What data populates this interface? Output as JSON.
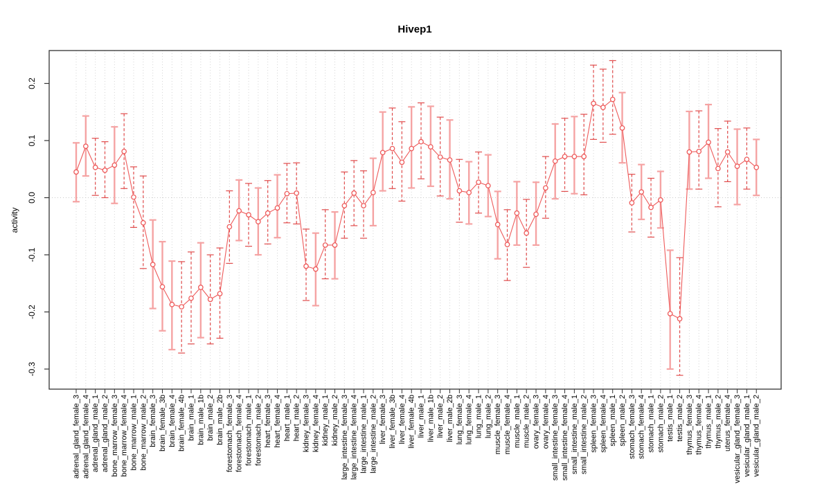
{
  "figure": {
    "background": "#ffffff"
  },
  "chart_data": {
    "type": "line",
    "subtype": "points-with-error-bars",
    "title": "Hivep1",
    "xlabel": "",
    "ylabel": "activity",
    "legend": "none",
    "grid": {
      "vertical": "dotted line at every category",
      "horizontal": "dotted line at y=0 only"
    },
    "ylim": [
      -0.335,
      0.258
    ],
    "y_tick_labels": [
      "0.2",
      "0.1",
      "0.0",
      "-0.1",
      "-0.2",
      "-0.3"
    ],
    "y_tick_values": [
      0.2,
      0.1,
      0.0,
      -0.1,
      -0.2,
      -0.3
    ],
    "colors": {
      "marker_line": "#ee5a5a",
      "error_bar_solid": "#f5a3a3",
      "error_bar_dashed": "#e04b4b",
      "frame": "#333333",
      "grid": "#d4d4d4",
      "zero_line": "#c9c9c9",
      "text": "#000000"
    },
    "categories": [
      "adrenal_gland_female_3",
      "adrenal_gland_female_4",
      "adrenal_gland_male_1",
      "adrenal_gland_male_2",
      "bone_marrow_female_3",
      "bone_marrow_female_4",
      "bone_marrow_male_1",
      "bone_marrow_male_2",
      "brain_female_3",
      "brain_female_3b",
      "brain_female_4",
      "brain_female_4b",
      "brain_male_1",
      "brain_male_1b",
      "brain_male_2",
      "brain_male_2b",
      "forestomach_female_3",
      "forestomach_female_4",
      "forestomach_male_1",
      "forestomach_male_2",
      "heart_female_3",
      "heart_female_4",
      "heart_male_1",
      "heart_male_2",
      "kidney_female_3",
      "kidney_female_4",
      "kidney_male_1",
      "kidney_male_2",
      "large_intestine_female_3",
      "large_intestine_female_4",
      "large_intestine_male_1",
      "large_intestine_male_2",
      "liver_female_3",
      "liver_female_3b",
      "liver_female_4",
      "liver_female_4b",
      "liver_male_1",
      "liver_male_1b",
      "liver_male_2",
      "liver_male_2b",
      "lung_female_3",
      "lung_female_4",
      "lung_male_1",
      "lung_male_2",
      "muscle_female_3",
      "muscle_female_4",
      "muscle_male_1",
      "muscle_male_2",
      "ovary_female_3",
      "ovary_female_4",
      "small_intestine_female_3",
      "small_intestine_female_4",
      "small_intestine_male_1",
      "small_intestine_male_2",
      "spleen_female_3",
      "spleen_female_4",
      "spleen_male_1",
      "spleen_male_2",
      "stomach_female_3",
      "stomach_female_4",
      "stomach_male_1",
      "stomach_male_2",
      "testis_male_1",
      "testis_male_2",
      "thymus_female_3",
      "thymus_female_4",
      "thymus_male_1",
      "thymus_male_2",
      "uterus_female_4",
      "vesicular_gland_female_3",
      "vesicular_gland_male_1",
      "vesicular_gland_male_2"
    ],
    "values": [
      0.045,
      0.09,
      0.053,
      0.048,
      0.057,
      0.081,
      0.001,
      -0.044,
      -0.117,
      -0.156,
      -0.187,
      -0.191,
      -0.176,
      -0.157,
      -0.178,
      -0.168,
      -0.051,
      -0.023,
      -0.03,
      -0.042,
      -0.027,
      -0.018,
      0.007,
      0.008,
      -0.12,
      -0.125,
      -0.083,
      -0.083,
      -0.014,
      0.008,
      -0.014,
      0.009,
      0.079,
      0.086,
      0.062,
      0.086,
      0.098,
      0.089,
      0.071,
      0.066,
      0.012,
      0.009,
      0.027,
      0.021,
      -0.047,
      -0.082,
      -0.027,
      -0.062,
      -0.029,
      0.017,
      0.064,
      0.072,
      0.072,
      0.072,
      0.165,
      0.158,
      0.172,
      0.122,
      -0.009,
      0.01,
      -0.017,
      -0.004,
      -0.203,
      -0.212,
      0.08,
      0.081,
      0.097,
      0.051,
      0.08,
      0.055,
      0.067,
      0.053
    ],
    "ci_low": [
      -0.007,
      0.038,
      0.004,
      0.0,
      -0.01,
      0.016,
      -0.052,
      -0.124,
      -0.194,
      -0.233,
      -0.266,
      -0.272,
      -0.256,
      -0.245,
      -0.256,
      -0.246,
      -0.115,
      -0.075,
      -0.085,
      -0.1,
      -0.081,
      -0.07,
      -0.044,
      -0.046,
      -0.18,
      -0.189,
      -0.142,
      -0.142,
      -0.071,
      -0.049,
      -0.071,
      -0.049,
      0.012,
      0.016,
      -0.006,
      0.017,
      0.033,
      0.02,
      0.003,
      -0.002,
      -0.043,
      -0.046,
      -0.027,
      -0.033,
      -0.107,
      -0.145,
      -0.083,
      -0.122,
      -0.083,
      -0.036,
      -0.002,
      0.011,
      0.007,
      0.005,
      0.102,
      0.097,
      0.111,
      0.061,
      -0.06,
      -0.038,
      -0.069,
      -0.053,
      -0.3,
      -0.311,
      0.015,
      0.015,
      0.034,
      -0.016,
      0.028,
      -0.012,
      0.015,
      0.004
    ],
    "ci_high": [
      0.096,
      0.143,
      0.104,
      0.098,
      0.124,
      0.147,
      0.054,
      0.038,
      -0.039,
      -0.077,
      -0.111,
      -0.112,
      -0.095,
      -0.079,
      -0.1,
      -0.088,
      0.012,
      0.031,
      0.025,
      0.017,
      0.03,
      0.04,
      0.06,
      0.061,
      -0.055,
      -0.062,
      -0.021,
      -0.025,
      0.045,
      0.065,
      0.047,
      0.069,
      0.15,
      0.157,
      0.133,
      0.159,
      0.166,
      0.16,
      0.141,
      0.136,
      0.067,
      0.063,
      0.08,
      0.075,
      0.011,
      -0.021,
      0.028,
      -0.003,
      0.027,
      0.072,
      0.129,
      0.139,
      0.142,
      0.146,
      0.232,
      0.225,
      0.24,
      0.184,
      0.041,
      0.058,
      0.034,
      0.046,
      -0.092,
      -0.105,
      0.151,
      0.152,
      0.163,
      0.121,
      0.134,
      0.12,
      0.122,
      0.102
    ],
    "bar_styles": [
      "s",
      "s",
      "d",
      "d",
      "s",
      "d",
      "d",
      "d",
      "s",
      "s",
      "s",
      "d",
      "d",
      "s",
      "d",
      "d",
      "d",
      "s",
      "d",
      "s",
      "d",
      "s",
      "d",
      "d",
      "d",
      "s",
      "d",
      "s",
      "d",
      "d",
      "d",
      "s",
      "s",
      "d",
      "d",
      "s",
      "d",
      "s",
      "d",
      "s",
      "d",
      "s",
      "d",
      "s",
      "s",
      "d",
      "s",
      "d",
      "s",
      "d",
      "s",
      "d",
      "s",
      "d",
      "d",
      "d",
      "d",
      "s",
      "d",
      "s",
      "d",
      "s",
      "s",
      "d",
      "s",
      "d",
      "s",
      "d",
      "d",
      "s",
      "d",
      "s"
    ]
  }
}
